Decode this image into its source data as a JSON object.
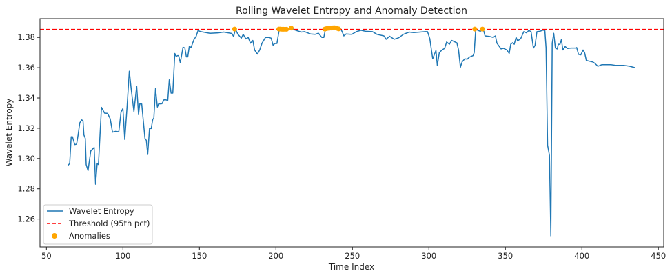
{
  "chart_data": {
    "type": "line",
    "title": "Rolling Wavelet Entropy and Anomaly Detection",
    "xlabel": "Time Index",
    "ylabel": "Wavelet Entropy",
    "xlim": [
      45.8,
      453.5
    ],
    "ylim": [
      1.2416,
      1.3924
    ],
    "xticks": [
      50,
      100,
      150,
      200,
      250,
      300,
      350,
      400,
      450
    ],
    "yticks": [
      1.26,
      1.28,
      1.3,
      1.32,
      1.34,
      1.36,
      1.38
    ],
    "ytick_labels": [
      "1.26",
      "1.28",
      "1.30",
      "1.32",
      "1.34",
      "1.36",
      "1.38"
    ],
    "grid": false,
    "legend_position": "lower-left",
    "threshold": {
      "name": "Threshold (95th pct)",
      "value": 1.3853,
      "color": "#ff0000"
    },
    "series": [
      {
        "name": "Wavelet Entropy",
        "color": "#1f77b4",
        "x": [
          64.1,
          65.2,
          66.2,
          67,
          68.5,
          69.7,
          70.7,
          71.8,
          73,
          73.9,
          74.5,
          75.4,
          76,
          77.2,
          79,
          81.2,
          82.1,
          83.2,
          84,
          86,
          88,
          90,
          91.7,
          93.2,
          95.4,
          97.3,
          98.8,
          100,
          101.2,
          102.7,
          104.2,
          105.4,
          107.2,
          109,
          110.2,
          111,
          112.3,
          114.4,
          115.3,
          116.2,
          117.4,
          118.5,
          119.5,
          120.2,
          121.3,
          122.5,
          123.3,
          125.5,
          127,
          129.3,
          130.3,
          131.5,
          132.6,
          133.9,
          134.8,
          135.7,
          136.4,
          137.5,
          139.3,
          140.5,
          141.5,
          142.4,
          143.4,
          144.6,
          146.4,
          147.9,
          149.1,
          150.9,
          156.9,
          162.2,
          165.9,
          171.2,
          172.4,
          173.5,
          175.2,
          177.4,
          178.6,
          180.4,
          181.9,
          183.4,
          184.9,
          186.1,
          187.9,
          189.4,
          190.9,
          193.2,
          195.4,
          196.9,
          198.2,
          199.2,
          200.7,
          202.2,
          204.5,
          207.5,
          209,
          210.5,
          212,
          216.5,
          218.8,
          222.6,
          225.6,
          227.8,
          230,
          231.3,
          232.4,
          235,
          238,
          240,
          242.1,
          243.3,
          244.4,
          245.9,
          249.6,
          252.6,
          255.6,
          258.6,
          263.1,
          266.1,
          270.6,
          272.1,
          274.3,
          277.3,
          280.3,
          283.3,
          287.1,
          290.1,
          297.6,
          299.1,
          300.6,
          302.5,
          304.6,
          305.5,
          306.8,
          308.8,
          310.3,
          311.6,
          313.4,
          314.9,
          318.3,
          319.4,
          320.6,
          321.7,
          323.5,
          325,
          326.5,
          328.9,
          329.6,
          330.6,
          333.6,
          335.6,
          336.7,
          339.7,
          342,
          343.5,
          344.5,
          347.2,
          348.7,
          351,
          352.5,
          353.5,
          354.7,
          355.8,
          357,
          358,
          360,
          362,
          363.8,
          365.3,
          366.8,
          368.3,
          369.4,
          370.6,
          372.5,
          374.3,
          375.8,
          376.6,
          377.6,
          378.8,
          379.7,
          380.6,
          381.6,
          382.7,
          383.9,
          384.6,
          385.7,
          386.6,
          387.6,
          389.1,
          390.6,
          392.9,
          395.9,
          396.6,
          397.8,
          399.3,
          400.8,
          401.8,
          402.9,
          407.1,
          408.6,
          410.5,
          413.1,
          419,
          422,
          427.3,
          431,
          434.8
        ],
        "y": [
          1.2955,
          1.2967,
          1.3144,
          1.3144,
          1.3092,
          1.3095,
          1.3156,
          1.3235,
          1.3255,
          1.325,
          1.3156,
          1.3133,
          1.296,
          1.292,
          1.305,
          1.3073,
          1.283,
          1.2967,
          1.296,
          1.3338,
          1.33,
          1.3298,
          1.3262,
          1.3174,
          1.318,
          1.3176,
          1.3308,
          1.333,
          1.3126,
          1.3338,
          1.3577,
          1.346,
          1.331,
          1.3479,
          1.329,
          1.336,
          1.336,
          1.3133,
          1.312,
          1.3027,
          1.3198,
          1.3198,
          1.3259,
          1.3266,
          1.3462,
          1.334,
          1.336,
          1.3362,
          1.339,
          1.3384,
          1.352,
          1.3432,
          1.3432,
          1.3694,
          1.3675,
          1.368,
          1.368,
          1.3633,
          1.3735,
          1.373,
          1.3671,
          1.3671,
          1.374,
          1.3735,
          1.3785,
          1.3808,
          1.3845,
          1.3838,
          1.3827,
          1.383,
          1.3835,
          1.3826,
          1.3805,
          1.3855,
          1.382,
          1.3795,
          1.382,
          1.379,
          1.38,
          1.3762,
          1.378,
          1.3717,
          1.369,
          1.3717,
          1.3762,
          1.38,
          1.38,
          1.3795,
          1.3747,
          1.376,
          1.376,
          1.3853,
          1.3853,
          1.3853,
          1.385,
          1.3864,
          1.385,
          1.3835,
          1.3838,
          1.3823,
          1.382,
          1.3828,
          1.38,
          1.38,
          1.3855,
          1.386,
          1.3865,
          1.386,
          1.386,
          1.3838,
          1.381,
          1.3823,
          1.382,
          1.3838,
          1.3847,
          1.384,
          1.3838,
          1.382,
          1.381,
          1.3788,
          1.3808,
          1.3788,
          1.3798,
          1.382,
          1.3835,
          1.3832,
          1.3838,
          1.3838,
          1.3792,
          1.3659,
          1.3714,
          1.3614,
          1.37,
          1.3719,
          1.3727,
          1.377,
          1.3755,
          1.378,
          1.3764,
          1.3717,
          1.3603,
          1.3638,
          1.3659,
          1.3656,
          1.367,
          1.368,
          1.37,
          1.3853,
          1.384,
          1.3853,
          1.381,
          1.3806,
          1.38,
          1.381,
          1.3762,
          1.3724,
          1.3728,
          1.3717,
          1.3694,
          1.3755,
          1.3765,
          1.3755,
          1.38,
          1.3777,
          1.3792,
          1.3838,
          1.383,
          1.3846,
          1.3838,
          1.373,
          1.3747,
          1.3838,
          1.384,
          1.3847,
          1.3847,
          1.373,
          1.3088,
          1.302,
          1.2489,
          1.3762,
          1.3827,
          1.373,
          1.3724,
          1.3755,
          1.3755,
          1.3785,
          1.3717,
          1.374,
          1.3727,
          1.373,
          1.373,
          1.3733,
          1.3688,
          1.3685,
          1.3717,
          1.37,
          1.3648,
          1.3638,
          1.3628,
          1.3609,
          1.362,
          1.362,
          1.3615,
          1.3615,
          1.361,
          1.36
        ]
      }
    ],
    "anomalies": {
      "name": "Anomalies",
      "color": "#ffa500",
      "x": [
        173,
        202,
        203,
        204,
        205,
        206,
        207,
        210,
        232,
        233,
        234,
        235,
        236,
        237,
        238,
        239,
        240,
        241,
        330,
        335
      ],
      "y": [
        1.3855,
        1.3855,
        1.3855,
        1.3854,
        1.3854,
        1.3854,
        1.3854,
        1.3862,
        1.3855,
        1.3858,
        1.386,
        1.3861,
        1.3862,
        1.3863,
        1.3864,
        1.3863,
        1.386,
        1.3856,
        1.3855,
        1.3855
      ]
    },
    "legend": [
      "Wavelet Entropy",
      "Threshold (95th pct)",
      "Anomalies"
    ]
  }
}
